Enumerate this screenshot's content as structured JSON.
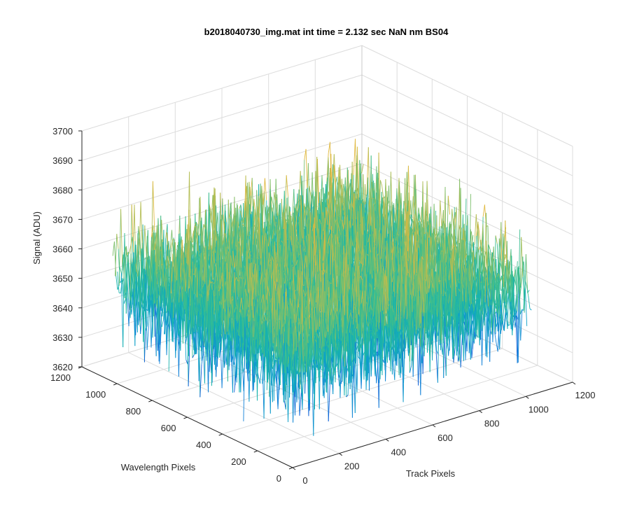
{
  "chart_data": {
    "type": "surface",
    "title": "b2018040730_img.mat int time = 2.132 sec  NaN nm BS04",
    "xlabel": "Track Pixels",
    "ylabel": "Wavelength Pixels",
    "zlabel": "Signal (ADU)",
    "xlim": [
      0,
      1200
    ],
    "ylim": [
      0,
      1200
    ],
    "zlim": [
      3620,
      3700
    ],
    "x_ticks": [
      0,
      200,
      400,
      600,
      800,
      1000,
      1200
    ],
    "y_ticks": [
      0,
      200,
      400,
      600,
      800,
      1000,
      1200
    ],
    "z_ticks": [
      3620,
      3630,
      3640,
      3650,
      3660,
      3670,
      3680,
      3690,
      3700
    ],
    "x_tick_labels": [
      "0",
      "200",
      "400",
      "600",
      "800",
      "1000",
      "1200"
    ],
    "y_tick_labels": [
      "0",
      "200",
      "400",
      "600",
      "800",
      "1000",
      "1200"
    ],
    "z_tick_labels": [
      "3620",
      "3630",
      "3640",
      "3650",
      "3660",
      "3670",
      "3680",
      "3690",
      "3700"
    ],
    "data_extent": {
      "x": [
        0,
        1024
      ],
      "y": [
        0,
        1024
      ]
    },
    "signal": {
      "mean": 3655,
      "std": 9.5,
      "min": 3627,
      "max": 3698
    },
    "grid": true,
    "colormap": "parula",
    "colormap_colors": [
      "#0f5bd6",
      "#1382d8",
      "#0fa0c9",
      "#18b3ad",
      "#3bbd8f",
      "#7cbf6c",
      "#b4bd53",
      "#e0b83e"
    ]
  }
}
